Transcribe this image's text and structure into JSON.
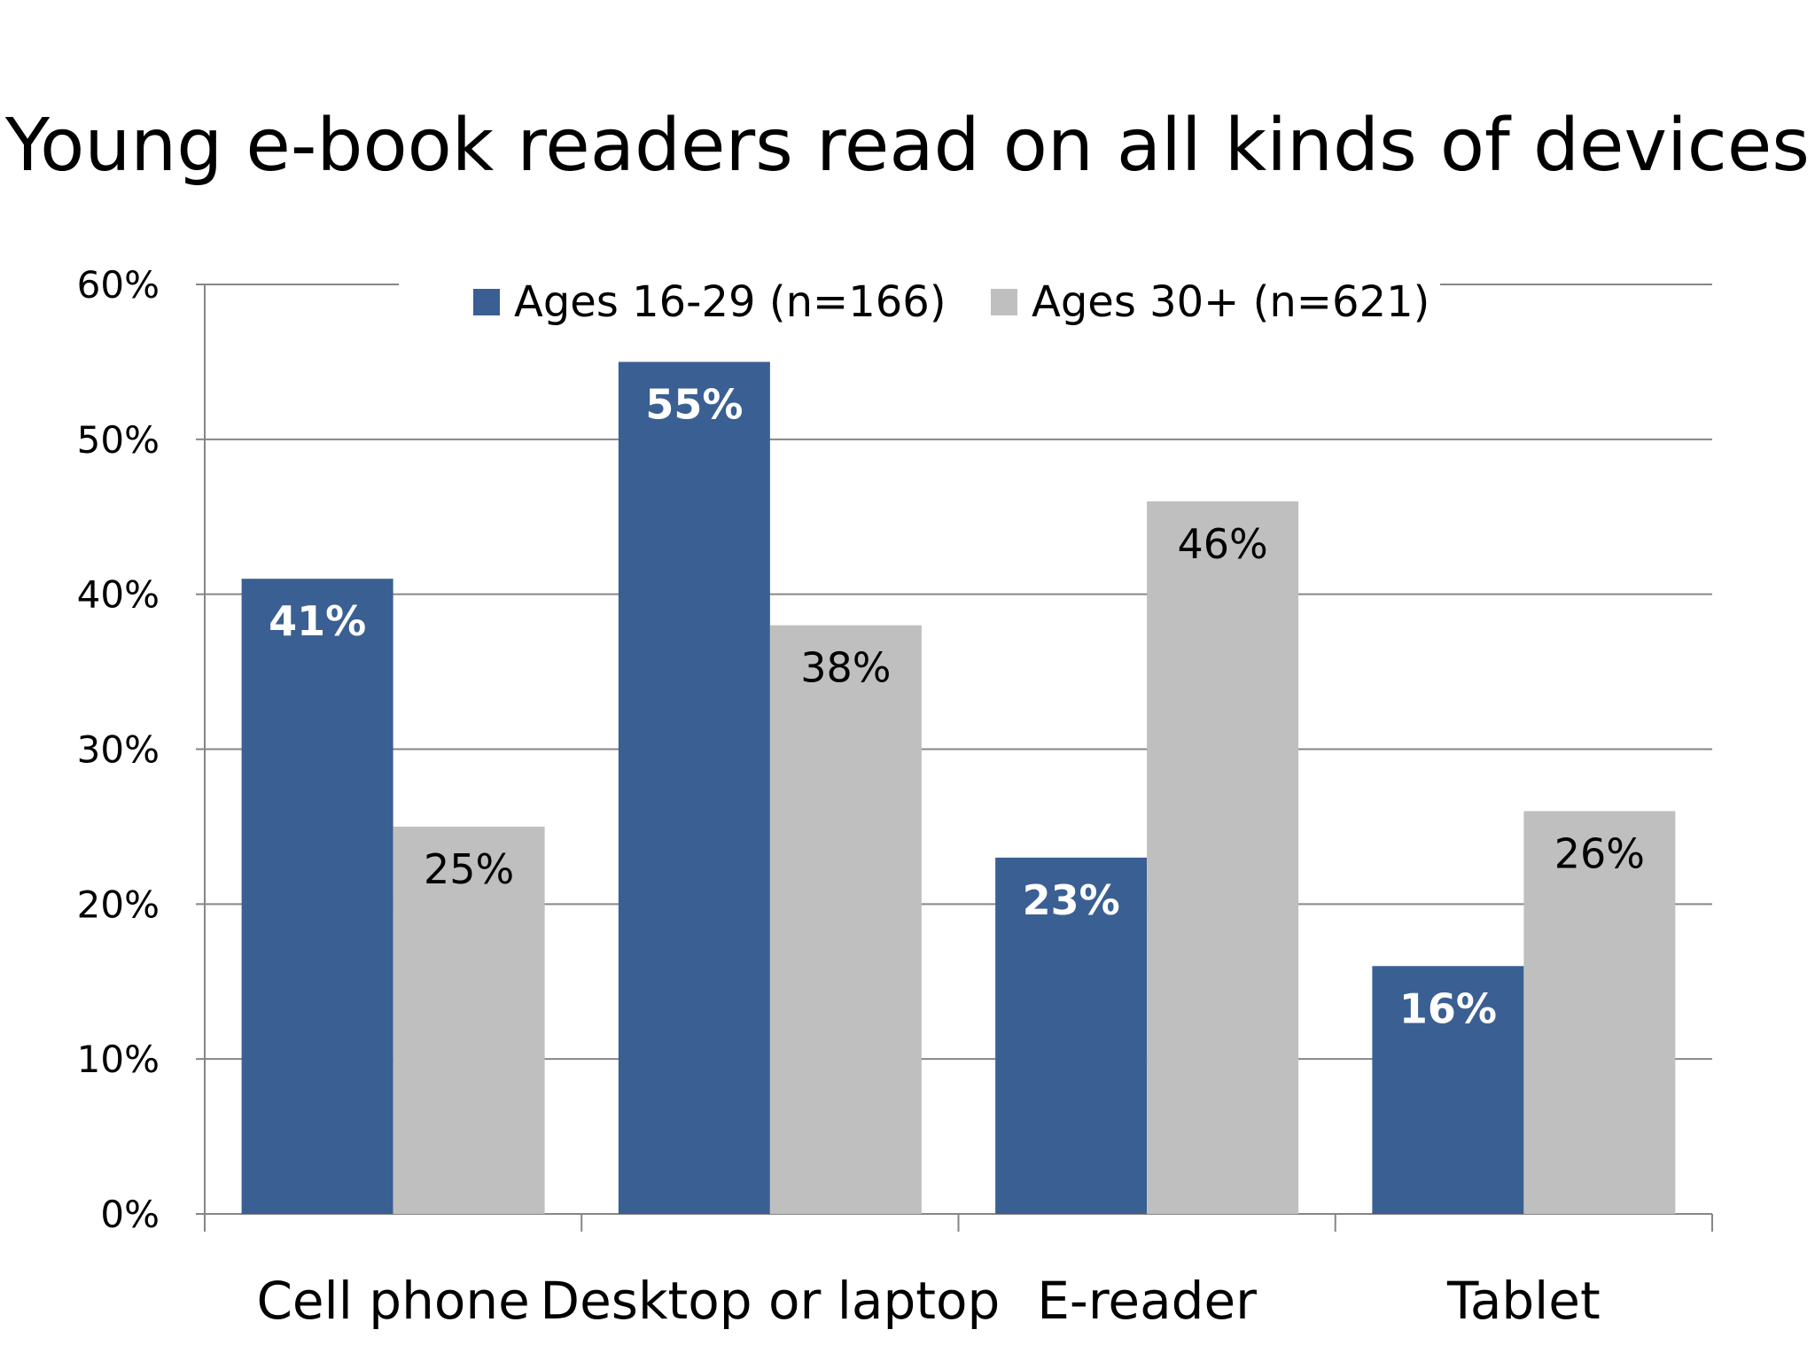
{
  "chart_data": {
    "type": "bar",
    "title": "Young e-book readers read on all kinds of devices",
    "xlabel": "",
    "ylabel": "",
    "ylim": [
      0,
      60
    ],
    "yticks": [
      "0%",
      "10%",
      "20%",
      "30%",
      "40%",
      "50%",
      "60%"
    ],
    "ytick_values": [
      0,
      10,
      20,
      30,
      40,
      50,
      60
    ],
    "categories": [
      "Cell phone",
      "Desktop or laptop",
      "E-reader",
      "Tablet"
    ],
    "series": [
      {
        "name": "Ages 16-29 (n=166)",
        "values": [
          41,
          55,
          23,
          16
        ],
        "labels": [
          "41%",
          "55%",
          "23%",
          "16%"
        ],
        "color": "#3a5f92",
        "label_style": "light"
      },
      {
        "name": "Ages 30+ (n=621)",
        "values": [
          25,
          38,
          46,
          26
        ],
        "labels": [
          "25%",
          "38%",
          "46%",
          "26%"
        ],
        "color": "#bfbfbf",
        "label_style": "dark"
      }
    ],
    "grid": true,
    "legend_position": "top"
  }
}
